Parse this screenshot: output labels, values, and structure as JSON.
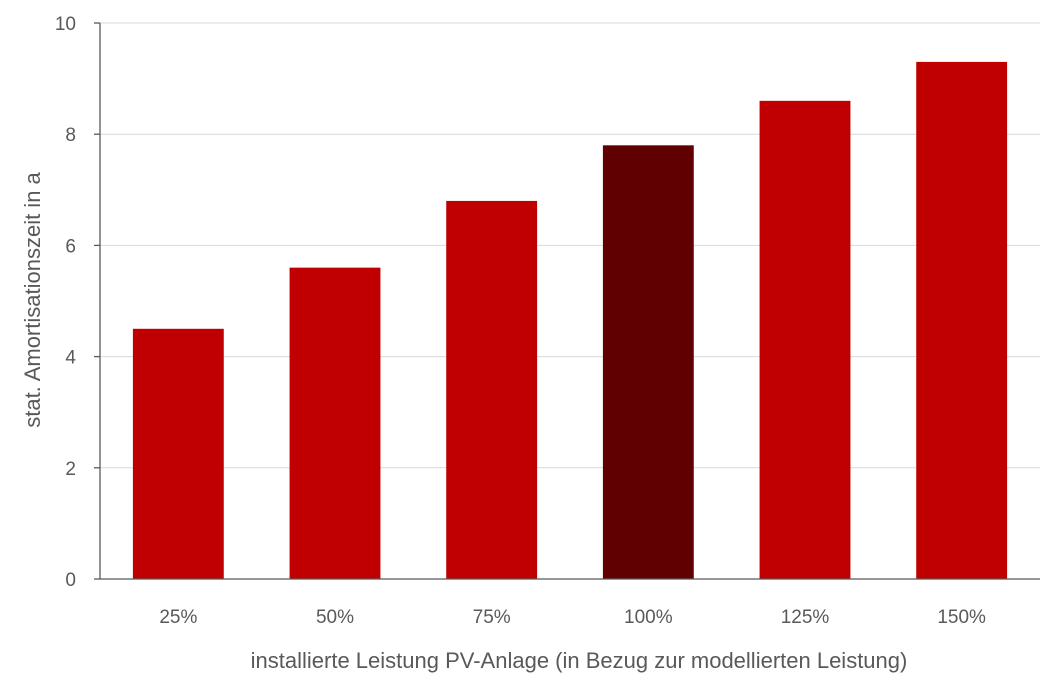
{
  "chart_data": {
    "type": "bar",
    "title": "",
    "xlabel": "installierte Leistung PV-Anlage (in Bezug zur modellierten Leistung)",
    "ylabel": "stat. Amortisationszeit in a",
    "categories": [
      "25%",
      "50%",
      "75%",
      "100%",
      "125%",
      "150%"
    ],
    "values": [
      4.5,
      5.6,
      6.8,
      7.8,
      8.6,
      9.3
    ],
    "ylim": [
      0,
      10
    ],
    "yticks": [
      0,
      2,
      4,
      6,
      8,
      10
    ],
    "grid": true,
    "legend": "none",
    "colors": {
      "bar": "#c00000",
      "highlight_bar": "#600000",
      "gridline": "#d9d9d9",
      "axis": "#595959",
      "text": "#595959"
    },
    "highlight_category": "100%"
  }
}
